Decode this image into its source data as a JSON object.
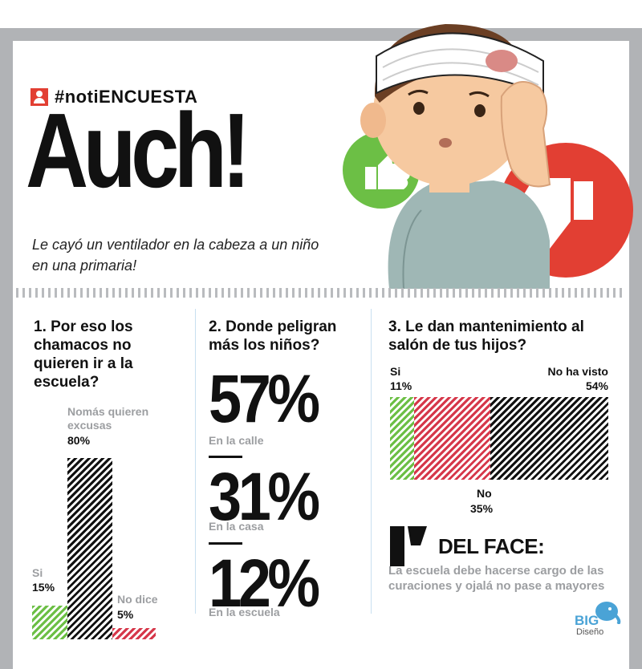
{
  "header": {
    "tag": "#notiENCUESTA",
    "headline": "Auch!",
    "subhead": "Le cayó un ventilador en la cabeza a un niño en una primaria!"
  },
  "colors": {
    "green": "#6cbf45",
    "red": "#e23f33",
    "pink": "#d6374a",
    "black": "#111111",
    "gray": "#b1b3b6"
  },
  "icons": [
    "user-icon",
    "thumbs-up-icon",
    "thumbs-down-icon",
    "quote-icon",
    "elephant-logo-icon"
  ],
  "chart_data": [
    {
      "type": "bar",
      "title": "1. Por eso los chamacos no quieren ir a la escuela?",
      "categories": [
        "Si",
        "Nomás quieren excusas",
        "No dice"
      ],
      "values": [
        15,
        80,
        5
      ],
      "labels": [
        "15%",
        "80%",
        "5%"
      ],
      "ylim": [
        0,
        100
      ]
    },
    {
      "type": "table",
      "title": "2. Donde peligran más los niños?",
      "categories": [
        "En la calle",
        "En la casa",
        "En la escuela"
      ],
      "values": [
        57,
        31,
        12
      ],
      "labels": [
        "57%",
        "31%",
        "12%"
      ]
    },
    {
      "type": "bar",
      "title": "3. Le dan mantenimiento al salón de tus hijos?",
      "categories": [
        "Si",
        "No",
        "No ha visto"
      ],
      "values": [
        11,
        35,
        54
      ],
      "labels": [
        "11%",
        "35%",
        "54%"
      ]
    }
  ],
  "quote": {
    "title": "DEL FACE:",
    "text": "La escuela debe hacerse cargo de las curaciones y ojalá no pase a mayores"
  },
  "logo": {
    "big": "BIG",
    "sub": "Diseño"
  }
}
